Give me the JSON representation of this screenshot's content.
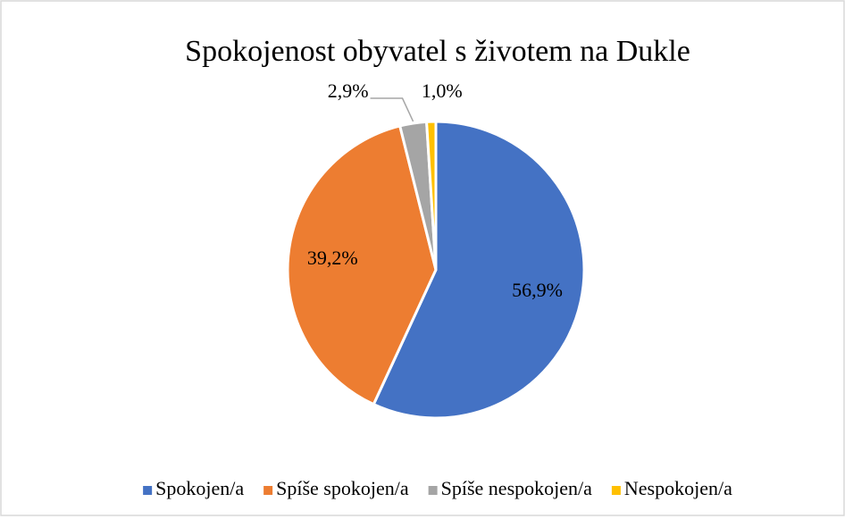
{
  "chart_data": {
    "type": "pie",
    "title": "Spokojenost obyvatel s životem na Dukle",
    "categories": [
      "Spokojen/a",
      "Spíše spokojen/a",
      "Spíše nespokojen/a",
      "Nespokojen/a"
    ],
    "values": [
      56.9,
      39.2,
      2.9,
      1.0
    ],
    "value_labels": [
      "56,9%",
      "39,2%",
      "2,9%",
      "1,0%"
    ],
    "colors": [
      "#4472c4",
      "#ed7d31",
      "#a5a5a5",
      "#ffc000"
    ],
    "legend": "bottom"
  }
}
